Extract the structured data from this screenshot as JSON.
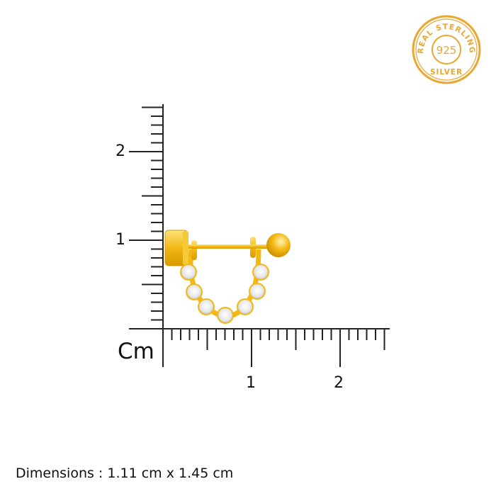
{
  "badge": {
    "text_top": "REAL STERLING",
    "number": "925",
    "text_bottom": "SILVER",
    "color": "#E9A630"
  },
  "ruler": {
    "unit": "Cm",
    "y_labels": [
      "1",
      "2"
    ],
    "x_labels": [
      "1",
      "2"
    ]
  },
  "product": {
    "name": "gold-tone cuff earring with clear stones",
    "metal_color": "#F2B814",
    "stone_count": 7
  },
  "dimensions": "Dimensions : 1.11 cm x 1.45 cm"
}
